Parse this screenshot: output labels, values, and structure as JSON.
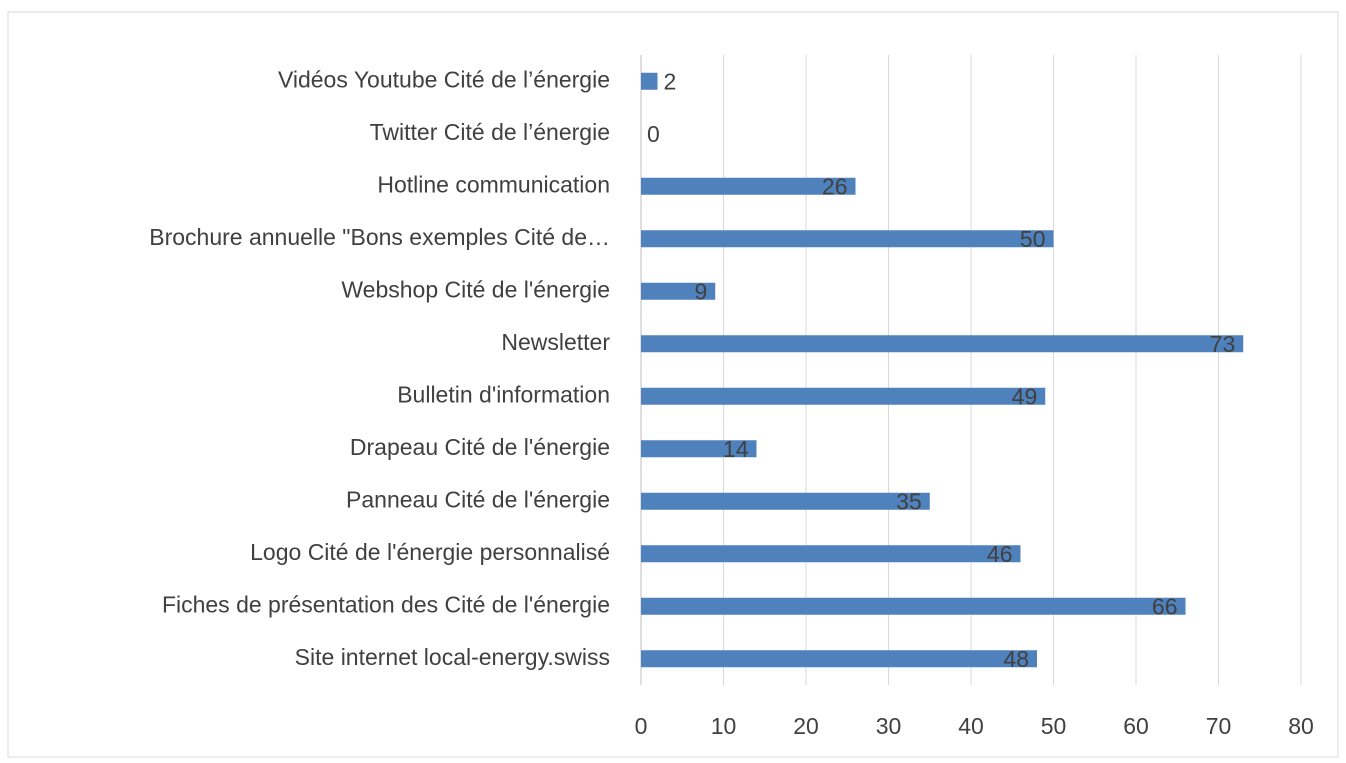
{
  "chart_data": {
    "type": "bar",
    "orientation": "horizontal",
    "categories": [
      "Vidéos Youtube Cité de l’énergie",
      "Twitter Cité de l’énergie",
      "Hotline communication",
      "Brochure annuelle \"Bons exemples Cité de…",
      "Webshop Cité de l'énergie",
      "Newsletter",
      "Bulletin d'information",
      "Drapeau Cité de l'énergie",
      "Panneau Cité de l'énergie",
      "Logo Cité de l'énergie personnalisé",
      "Fiches de présentation des Cité de l'énergie",
      "Site internet local-energy.swiss"
    ],
    "values": [
      2,
      0,
      26,
      50,
      9,
      73,
      49,
      14,
      35,
      46,
      66,
      48
    ],
    "color": "#4f81bd",
    "xlim": [
      0,
      80
    ],
    "xticks": [
      0,
      10,
      20,
      30,
      40,
      50,
      60,
      70,
      80
    ],
    "grid": true
  }
}
